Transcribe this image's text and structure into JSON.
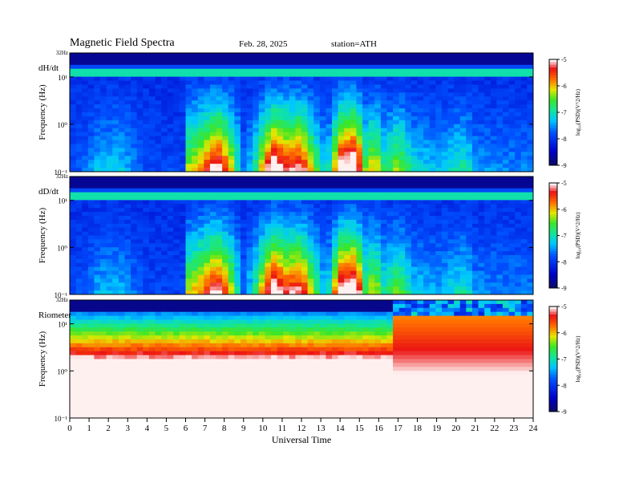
{
  "header": {
    "title": "Magnetic Field Spectra",
    "date": "Feb. 28, 2025",
    "station": "station=ATH"
  },
  "chart_data": [
    {
      "type": "heatmap",
      "panel_label": "dH/dt",
      "ylabel": "Frequency (Hz)",
      "y_scale": "log",
      "ylim": [
        0.1,
        32
      ],
      "y_ticks": [
        "10⁻¹",
        "10⁰",
        "10¹"
      ],
      "y_top_label": "32Hz",
      "x_range": [
        0,
        24
      ],
      "colorbar": {
        "label": "log₁₀(PSD)(V^2/Hz)",
        "range": [
          -9,
          -5
        ],
        "ticks": [
          "-5",
          "-6",
          "-7",
          "-8",
          "-9"
        ]
      },
      "activity": [
        {
          "t": 0,
          "v": 0.05
        },
        {
          "t": 1,
          "v": 0.12
        },
        {
          "t": 1.5,
          "v": 0.2
        },
        {
          "t": 2.5,
          "v": 0.22
        },
        {
          "t": 3.2,
          "v": 0.15
        },
        {
          "t": 4,
          "v": 0.06
        },
        {
          "t": 6,
          "v": 0.05
        },
        {
          "t": 6.1,
          "v": 0.45
        },
        {
          "t": 7,
          "v": 0.62
        },
        {
          "t": 7.6,
          "v": 0.82
        },
        {
          "t": 8.3,
          "v": 0.55
        },
        {
          "t": 9,
          "v": 0.1
        },
        {
          "t": 9.6,
          "v": 0.3
        },
        {
          "t": 10.5,
          "v": 0.88
        },
        {
          "t": 11.2,
          "v": 0.72
        },
        {
          "t": 12,
          "v": 0.76
        },
        {
          "t": 12.6,
          "v": 0.45
        },
        {
          "t": 13.3,
          "v": 0.15
        },
        {
          "t": 14,
          "v": 0.8
        },
        {
          "t": 14.8,
          "v": 0.92
        },
        {
          "t": 15.3,
          "v": 0.4
        },
        {
          "t": 15.8,
          "v": 0.55
        },
        {
          "t": 16.3,
          "v": 0.3
        },
        {
          "t": 17,
          "v": 0.45
        },
        {
          "t": 17.8,
          "v": 0.25
        },
        {
          "t": 19,
          "v": 0.18
        },
        {
          "t": 20.5,
          "v": 0.3
        },
        {
          "t": 21,
          "v": 0.15
        },
        {
          "t": 24,
          "v": 0.12
        }
      ]
    },
    {
      "type": "heatmap",
      "panel_label": "dD/dt",
      "ylabel": "Frequency (Hz)",
      "y_scale": "log",
      "ylim": [
        0.1,
        32
      ],
      "y_ticks": [
        "10⁻¹",
        "10⁰",
        "10¹"
      ],
      "y_top_label": "32Hz",
      "x_range": [
        0,
        24
      ],
      "colorbar": {
        "label": "log₁₀(PSD)(V^2/Hz)",
        "range": [
          -9,
          -5
        ],
        "ticks": [
          "-5",
          "-6",
          "-7",
          "-8",
          "-9"
        ]
      },
      "activity": [
        {
          "t": 0,
          "v": 0.04
        },
        {
          "t": 1,
          "v": 0.1
        },
        {
          "t": 1.5,
          "v": 0.18
        },
        {
          "t": 2.5,
          "v": 0.2
        },
        {
          "t": 3.2,
          "v": 0.12
        },
        {
          "t": 4,
          "v": 0.05
        },
        {
          "t": 6,
          "v": 0.05
        },
        {
          "t": 6.1,
          "v": 0.45
        },
        {
          "t": 7,
          "v": 0.62
        },
        {
          "t": 7.6,
          "v": 0.8
        },
        {
          "t": 8.3,
          "v": 0.52
        },
        {
          "t": 9,
          "v": 0.1
        },
        {
          "t": 9.6,
          "v": 0.3
        },
        {
          "t": 10.5,
          "v": 0.86
        },
        {
          "t": 11.2,
          "v": 0.7
        },
        {
          "t": 12,
          "v": 0.74
        },
        {
          "t": 12.6,
          "v": 0.42
        },
        {
          "t": 13.3,
          "v": 0.15
        },
        {
          "t": 14,
          "v": 0.8
        },
        {
          "t": 14.8,
          "v": 0.9
        },
        {
          "t": 15.3,
          "v": 0.38
        },
        {
          "t": 15.8,
          "v": 0.52
        },
        {
          "t": 16.3,
          "v": 0.28
        },
        {
          "t": 17,
          "v": 0.42
        },
        {
          "t": 17.8,
          "v": 0.22
        },
        {
          "t": 19,
          "v": 0.16
        },
        {
          "t": 20.5,
          "v": 0.28
        },
        {
          "t": 21,
          "v": 0.14
        },
        {
          "t": 24,
          "v": 0.12
        }
      ]
    },
    {
      "type": "heatmap",
      "panel_label": "Riometer",
      "ylabel": "Frequency (Hz)",
      "xlabel": "Universal Time",
      "y_scale": "log",
      "ylim": [
        0.1,
        32
      ],
      "y_ticks": [
        "10⁻¹",
        "10⁰",
        "10¹"
      ],
      "y_top_label": "32Hz",
      "x_range": [
        0,
        24
      ],
      "x_ticks": [
        "0",
        "1",
        "2",
        "3",
        "4",
        "5",
        "6",
        "7",
        "8",
        "9",
        "10",
        "11",
        "12",
        "13",
        "14",
        "15",
        "16",
        "17",
        "18",
        "19",
        "20",
        "21",
        "22",
        "23",
        "24"
      ],
      "colorbar": {
        "label": "log₁₀(PSD)(V^2/Hz)",
        "range": [
          -9,
          -5
        ],
        "ticks": [
          "-5",
          "-6",
          "-7",
          "-8",
          "-9"
        ]
      },
      "regime_change_hour": 16.8
    }
  ]
}
